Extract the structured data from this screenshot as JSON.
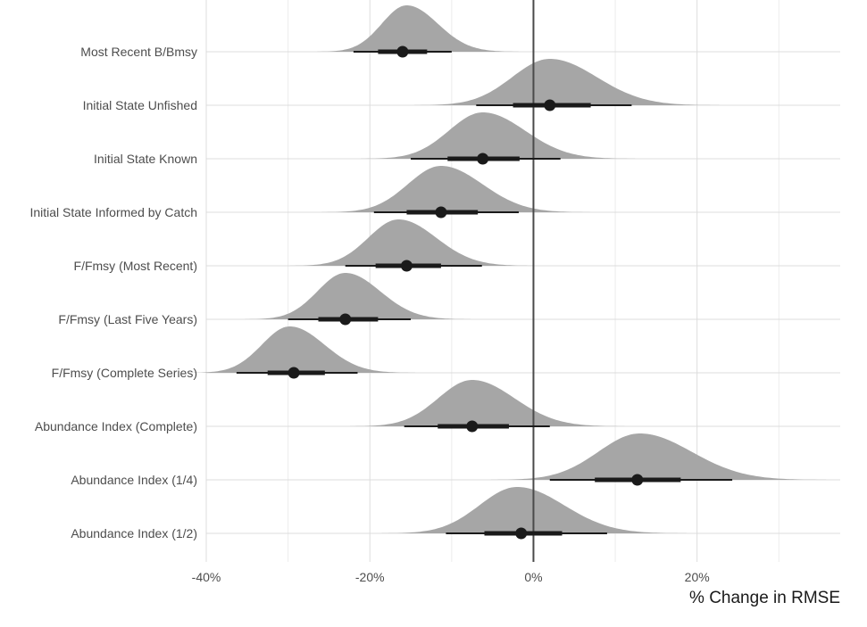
{
  "chart_data": {
    "type": "halfeye",
    "xlabel": "% Change in RMSE",
    "ylabel": "",
    "xlim": [
      -0.4,
      0.375
    ],
    "x_ticks": [
      {
        "value": -0.4,
        "label": "-40%"
      },
      {
        "value": -0.2,
        "label": "-20%"
      },
      {
        "value": 0.0,
        "label": "0%"
      },
      {
        "value": 0.2,
        "label": "20%"
      }
    ],
    "x_minor_ticks": [
      -0.3,
      -0.1,
      0.1,
      0.3
    ],
    "reference_line": 0,
    "grid": true,
    "categories": [
      "Most Recent B/Bmsy",
      "Initial State Unfished",
      "Initial State Known",
      "Initial State Informed by Catch",
      "F/Fmsy (Most Recent)",
      "F/Fmsy (Last Five Years)",
      "F/Fmsy (Complete Series)",
      "Abundance Index (Complete)",
      "Abundance Index (1/4)",
      "Abundance Index (1/2)"
    ],
    "series": [
      {
        "category": "Most Recent B/Bmsy",
        "median": -0.16,
        "q66": [
          -0.19,
          -0.13
        ],
        "q95": [
          -0.22,
          -0.1
        ],
        "mode": -0.155,
        "sd": 0.033
      },
      {
        "category": "Initial State Unfished",
        "median": 0.02,
        "q66": [
          -0.025,
          0.07
        ],
        "q95": [
          -0.07,
          0.12
        ],
        "mode": 0.02,
        "sd": 0.05
      },
      {
        "category": "Initial State Known",
        "median": -0.062,
        "q66": [
          -0.105,
          -0.017
        ],
        "q95": [
          -0.15,
          0.033
        ],
        "mode": -0.062,
        "sd": 0.045
      },
      {
        "category": "Initial State Informed by Catch",
        "median": -0.113,
        "q66": [
          -0.155,
          -0.068
        ],
        "q95": [
          -0.195,
          -0.018
        ],
        "mode": -0.113,
        "sd": 0.044
      },
      {
        "category": "F/Fmsy (Most Recent)",
        "median": -0.155,
        "q66": [
          -0.193,
          -0.113
        ],
        "q95": [
          -0.23,
          -0.063
        ],
        "mode": -0.165,
        "sd": 0.04
      },
      {
        "category": "F/Fmsy (Last Five Years)",
        "median": -0.23,
        "q66": [
          -0.263,
          -0.19
        ],
        "q95": [
          -0.3,
          -0.15
        ],
        "mode": -0.23,
        "sd": 0.037
      },
      {
        "category": "F/Fmsy (Complete Series)",
        "median": -0.293,
        "q66": [
          -0.325,
          -0.255
        ],
        "q95": [
          -0.363,
          -0.215
        ],
        "mode": -0.298,
        "sd": 0.037
      },
      {
        "category": "Abundance Index (Complete)",
        "median": -0.075,
        "q66": [
          -0.117,
          -0.03
        ],
        "q95": [
          -0.158,
          0.02
        ],
        "mode": -0.075,
        "sd": 0.045
      },
      {
        "category": "Abundance Index (1/4)",
        "median": 0.127,
        "q66": [
          0.075,
          0.18
        ],
        "q95": [
          0.02,
          0.243
        ],
        "mode": 0.13,
        "sd": 0.055
      },
      {
        "category": "Abundance Index (1/2)",
        "median": -0.015,
        "q66": [
          -0.06,
          0.035
        ],
        "q95": [
          -0.107,
          0.09
        ],
        "mode": -0.02,
        "sd": 0.05
      }
    ]
  }
}
